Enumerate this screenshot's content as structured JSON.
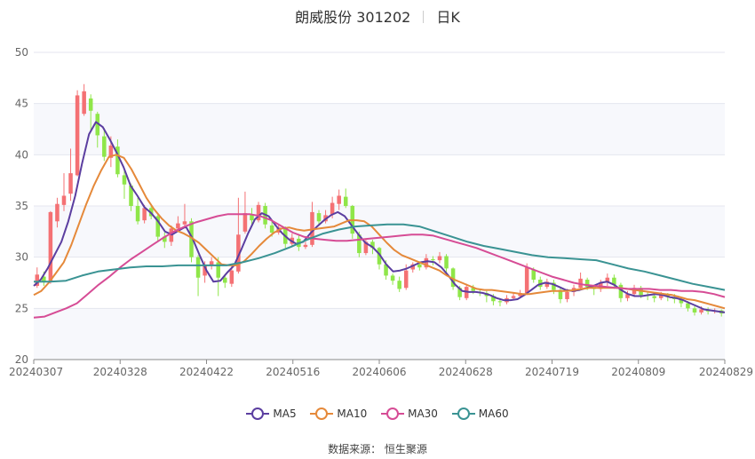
{
  "header": {
    "name": "朗威股份 301202",
    "period": "日K"
  },
  "source": "数据来源： 恒生聚源",
  "chart_data": {
    "type": "candlestick",
    "title": "朗威股份 301202",
    "ylim": [
      20,
      50
    ],
    "yticks": [
      "20",
      "25",
      "30",
      "35",
      "40",
      "45",
      "50"
    ],
    "xticks": [
      "20240307",
      "20240328",
      "20240422",
      "20240516",
      "20240606",
      "20240628",
      "20240719",
      "20240809",
      "20240829"
    ],
    "up_color": "#f47174",
    "down_color": "#8fe649",
    "candles": [
      [
        27.2,
        28.3,
        29.0,
        27.0
      ],
      [
        28.1,
        27.6,
        28.6,
        27.2
      ],
      [
        27.6,
        34.4,
        34.5,
        27.4
      ],
      [
        33.5,
        35.2,
        35.8,
        32.9
      ],
      [
        35.1,
        36.0,
        38.2,
        34.5
      ],
      [
        36.2,
        38.2,
        40.6,
        35.5
      ],
      [
        38.0,
        45.8,
        46.3,
        37.9
      ],
      [
        44.0,
        46.2,
        46.9,
        43.8
      ],
      [
        45.5,
        44.3,
        45.9,
        42.2
      ],
      [
        44.0,
        41.9,
        44.2,
        40.7
      ],
      [
        41.8,
        39.8,
        42.6,
        39.4
      ],
      [
        39.7,
        40.9,
        41.8,
        38.8
      ],
      [
        40.8,
        38.1,
        41.5,
        37.8
      ],
      [
        38.0,
        37.1,
        38.5,
        35.7
      ],
      [
        37.0,
        35.0,
        37.2,
        34.5
      ],
      [
        35.0,
        33.5,
        35.8,
        33.2
      ],
      [
        33.6,
        34.8,
        35.1,
        33.3
      ],
      [
        34.8,
        34.0,
        35.0,
        33.7
      ],
      [
        34.0,
        32.0,
        34.2,
        31.6
      ],
      [
        32.0,
        31.5,
        32.4,
        30.9
      ],
      [
        31.5,
        32.8,
        33.1,
        31.1
      ],
      [
        32.8,
        33.3,
        34.0,
        32.6
      ],
      [
        33.2,
        33.5,
        35.2,
        32.8
      ],
      [
        33.5,
        30.0,
        33.8,
        29.5
      ],
      [
        30.0,
        28.0,
        30.2,
        26.2
      ],
      [
        28.2,
        29.2,
        29.6,
        27.5
      ],
      [
        29.2,
        29.6,
        30.0,
        28.8
      ],
      [
        29.5,
        28.0,
        30.0,
        26.2
      ],
      [
        28.0,
        27.5,
        28.3,
        27.0
      ],
      [
        27.4,
        28.7,
        29.1,
        27.1
      ],
      [
        28.6,
        32.2,
        35.8,
        28.4
      ],
      [
        32.5,
        34.3,
        36.4,
        32.3
      ],
      [
        34.2,
        33.6,
        34.8,
        33.2
      ],
      [
        33.6,
        35.1,
        35.4,
        33.4
      ],
      [
        35.0,
        33.2,
        35.3,
        32.8
      ],
      [
        33.1,
        32.4,
        33.5,
        32.0
      ],
      [
        32.4,
        32.9,
        33.1,
        32.2
      ],
      [
        32.8,
        31.3,
        33.0,
        30.9
      ],
      [
        31.3,
        31.9,
        32.3,
        31.0
      ],
      [
        31.8,
        31.0,
        32.1,
        30.6
      ],
      [
        31.0,
        31.2,
        31.5,
        30.8
      ],
      [
        31.2,
        34.4,
        35.4,
        31.0
      ],
      [
        34.3,
        33.5,
        34.6,
        33.1
      ],
      [
        33.5,
        34.1,
        34.6,
        33.3
      ],
      [
        34.2,
        35.3,
        35.9,
        33.8
      ],
      [
        35.2,
        36.0,
        36.6,
        34.6
      ],
      [
        35.9,
        35.0,
        36.7,
        34.8
      ],
      [
        35.0,
        32.3,
        35.1,
        31.8
      ],
      [
        32.2,
        30.4,
        32.5,
        30.0
      ],
      [
        30.4,
        31.5,
        31.8,
        30.2
      ],
      [
        31.5,
        30.9,
        31.7,
        30.3
      ],
      [
        30.9,
        29.3,
        31.0,
        28.8
      ],
      [
        29.3,
        28.2,
        29.7,
        27.8
      ],
      [
        28.2,
        27.7,
        28.4,
        27.3
      ],
      [
        27.7,
        26.9,
        28.1,
        26.6
      ],
      [
        27.0,
        28.7,
        29.3,
        26.8
      ],
      [
        28.8,
        29.3,
        29.5,
        28.5
      ],
      [
        29.3,
        29.0,
        29.6,
        28.7
      ],
      [
        29.0,
        29.9,
        30.3,
        28.8
      ],
      [
        29.8,
        29.7,
        30.1,
        29.2
      ],
      [
        29.7,
        30.1,
        30.5,
        29.4
      ],
      [
        30.1,
        28.9,
        30.3,
        28.5
      ],
      [
        28.9,
        27.1,
        29.0,
        26.8
      ],
      [
        27.0,
        26.1,
        27.2,
        25.8
      ],
      [
        26.0,
        27.1,
        27.4,
        25.8
      ],
      [
        27.0,
        26.7,
        27.3,
        26.4
      ],
      [
        26.6,
        26.5,
        26.9,
        26.2
      ],
      [
        26.5,
        26.2,
        26.7,
        25.6
      ],
      [
        26.2,
        25.7,
        26.4,
        25.3
      ],
      [
        25.7,
        25.6,
        26.0,
        25.2
      ],
      [
        25.6,
        26.0,
        26.3,
        25.4
      ],
      [
        26.0,
        26.2,
        26.5,
        25.8
      ],
      [
        26.2,
        26.5,
        26.8,
        26.0
      ],
      [
        26.5,
        29.0,
        29.4,
        26.3
      ],
      [
        28.8,
        27.8,
        29.0,
        27.5
      ],
      [
        27.8,
        27.1,
        28.1,
        26.8
      ],
      [
        27.1,
        27.6,
        27.9,
        26.9
      ],
      [
        27.5,
        26.8,
        27.8,
        26.4
      ],
      [
        26.8,
        25.9,
        27.0,
        25.5
      ],
      [
        25.9,
        26.6,
        26.9,
        25.6
      ],
      [
        26.6,
        27.0,
        27.3,
        26.2
      ],
      [
        27.0,
        27.9,
        28.5,
        26.8
      ],
      [
        27.8,
        27.1,
        28.0,
        26.8
      ],
      [
        27.1,
        26.9,
        27.3,
        26.3
      ],
      [
        26.9,
        27.5,
        27.8,
        26.6
      ],
      [
        27.5,
        28.0,
        28.4,
        27.2
      ],
      [
        28.0,
        27.3,
        28.3,
        26.9
      ],
      [
        27.3,
        26.0,
        27.5,
        25.6
      ],
      [
        26.0,
        26.4,
        26.7,
        25.7
      ],
      [
        26.4,
        27.0,
        27.3,
        26.1
      ],
      [
        27.0,
        26.3,
        27.2,
        26.0
      ],
      [
        26.3,
        26.2,
        26.6,
        25.8
      ],
      [
        26.2,
        26.0,
        26.4,
        25.6
      ],
      [
        26.0,
        26.3,
        26.6,
        25.8
      ],
      [
        26.3,
        26.1,
        26.5,
        25.7
      ],
      [
        26.1,
        25.9,
        26.4,
        25.5
      ],
      [
        25.9,
        25.5,
        26.1,
        25.1
      ],
      [
        25.5,
        25.0,
        25.7,
        24.7
      ],
      [
        25.0,
        24.6,
        25.2,
        24.3
      ],
      [
        24.6,
        24.9,
        25.2,
        24.4
      ],
      [
        24.9,
        24.7,
        25.1,
        24.4
      ],
      [
        24.7,
        24.8,
        25.0,
        24.5
      ],
      [
        24.8,
        24.5,
        24.9,
        24.2
      ]
    ],
    "series": [
      {
        "name": "MA5",
        "color": "#5b3ea0",
        "values": [
          27.2,
          27.8,
          28.9,
          30.2,
          31.5,
          33.5,
          36.0,
          39.2,
          42.0,
          43.2,
          42.7,
          41.5,
          40.2,
          38.8,
          37.0,
          36.0,
          34.9,
          34.3,
          33.5,
          32.5,
          32.2,
          32.6,
          33.0,
          31.8,
          30.2,
          28.7,
          27.6,
          27.7,
          28.5,
          29.2,
          30.7,
          32.3,
          33.7,
          34.3,
          34.0,
          33.1,
          32.3,
          31.7,
          31.3,
          31.5,
          32.3,
          33.0,
          33.6,
          34.1,
          34.4,
          34.0,
          33.1,
          32.2,
          31.4,
          31.0,
          30.3,
          29.3,
          28.6,
          28.7,
          28.9,
          29.2,
          29.5,
          29.6,
          29.5,
          29.0,
          28.2,
          27.3,
          26.7,
          26.6,
          26.6,
          26.5,
          26.3,
          26.0,
          25.8,
          25.8,
          25.9,
          26.3,
          26.8,
          27.3,
          27.5,
          27.4,
          27.1,
          26.8,
          26.7,
          26.8,
          27.0,
          27.2,
          27.5,
          27.6,
          27.3,
          26.8,
          26.4,
          26.2,
          26.2,
          26.3,
          26.4,
          26.3,
          26.1,
          26.0,
          25.8,
          25.5,
          25.2,
          24.9,
          24.8,
          24.7,
          24.6
        ]
      },
      {
        "name": "MA10",
        "color": "#e5893a",
        "values": [
          26.3,
          26.7,
          27.5,
          28.5,
          29.5,
          31.2,
          33.2,
          35.2,
          37.0,
          38.5,
          39.8,
          40.0,
          39.7,
          38.6,
          37.2,
          35.8,
          34.7,
          33.8,
          33.1,
          32.6,
          32.3,
          31.9,
          31.4,
          30.7,
          30.0,
          29.3,
          29.2,
          29.2,
          29.6,
          30.3,
          31.1,
          31.8,
          32.4,
          32.8,
          32.9,
          32.7,
          32.6,
          32.7,
          32.8,
          32.9,
          33.0,
          33.3,
          33.6,
          33.6,
          33.5,
          33.0,
          32.2,
          31.4,
          30.7,
          30.2,
          29.9,
          29.6,
          29.3,
          29.0,
          28.7,
          28.2,
          27.8,
          27.5,
          27.2,
          26.9,
          26.8,
          26.8,
          26.7,
          26.6,
          26.5,
          26.4,
          26.4,
          26.5,
          26.6,
          26.7,
          26.7,
          26.7,
          26.8,
          26.9,
          27.0,
          27.0,
          27.0,
          27.0,
          27.0,
          26.9,
          26.8,
          26.7,
          26.6,
          26.5,
          26.4,
          26.3,
          26.1,
          25.9,
          25.8,
          25.6,
          25.4,
          25.2,
          25.0
        ]
      },
      {
        "name": "MA30",
        "color": "#d64c95",
        "values": [
          24.1,
          24.2,
          24.6,
          25.0,
          25.5,
          26.4,
          27.3,
          28.1,
          29.0,
          29.8,
          30.5,
          31.2,
          31.9,
          32.5,
          33.0,
          33.4,
          33.7,
          34.0,
          34.2,
          34.2,
          34.2,
          34.0,
          33.6,
          33.0,
          32.4,
          32.0,
          31.8,
          31.7,
          31.6,
          31.6,
          31.7,
          31.8,
          31.9,
          32.0,
          32.1,
          32.2,
          32.2,
          32.1,
          31.8,
          31.5,
          31.2,
          30.9,
          30.5,
          30.1,
          29.7,
          29.3,
          28.9,
          28.5,
          28.1,
          27.8,
          27.5,
          27.3,
          27.2,
          27.1,
          27.0,
          26.9,
          26.9,
          26.9,
          26.8,
          26.8,
          26.7,
          26.7,
          26.6,
          26.4,
          26.1
        ]
      },
      {
        "name": "MA60",
        "color": "#3a9393",
        "values": [
          27.6,
          27.6,
          27.7,
          28.2,
          28.6,
          28.8,
          29.0,
          29.1,
          29.1,
          29.2,
          29.2,
          29.2,
          29.2,
          29.5,
          29.9,
          30.4,
          31.0,
          31.7,
          32.3,
          32.7,
          33.0,
          33.1,
          33.2,
          33.2,
          33.0,
          32.5,
          32.0,
          31.5,
          31.1,
          30.8,
          30.5,
          30.2,
          30.0,
          29.9,
          29.8,
          29.7,
          29.3,
          28.9,
          28.6,
          28.2,
          27.8,
          27.4,
          27.1,
          26.8
        ]
      }
    ]
  }
}
